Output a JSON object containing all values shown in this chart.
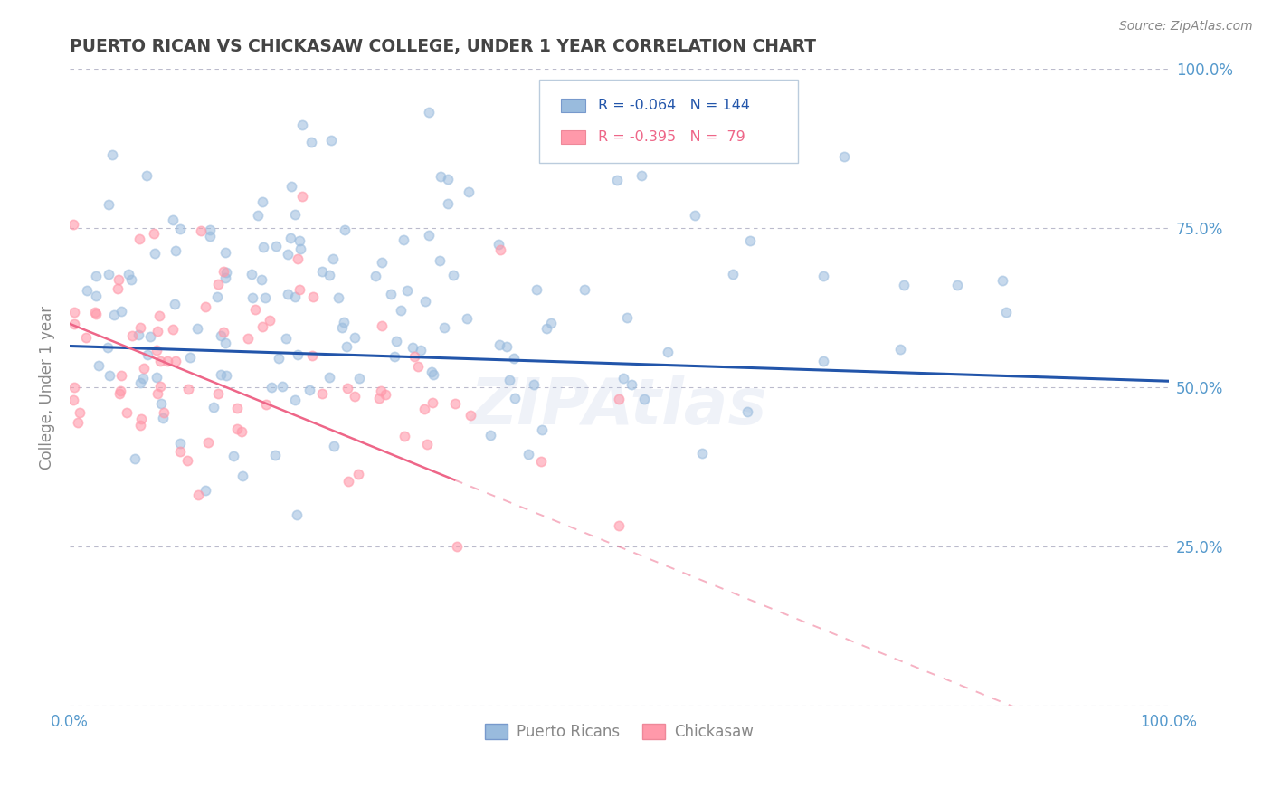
{
  "title": "PUERTO RICAN VS CHICKASAW COLLEGE, UNDER 1 YEAR CORRELATION CHART",
  "source_text": "Source: ZipAtlas.com",
  "ylabel": "College, Under 1 year",
  "watermark": "ZIPAtlas",
  "blue_R": -0.064,
  "blue_N": 144,
  "pink_R": -0.395,
  "pink_N": 79,
  "blue_color": "#99BBDD",
  "pink_color": "#FF99AA",
  "blue_line_color": "#2255AA",
  "pink_line_color": "#EE6688",
  "xmin": 0.0,
  "xmax": 1.0,
  "ymin": 0.0,
  "ymax": 1.0,
  "yticks": [
    0.0,
    0.25,
    0.5,
    0.75,
    1.0
  ],
  "ytick_labels_right": [
    "",
    "25.0%",
    "50.0%",
    "75.0%",
    "100.0%"
  ],
  "xticks": [
    0.0,
    0.25,
    0.5,
    0.75,
    1.0
  ],
  "xtick_labels": [
    "0.0%",
    "",
    "",
    "",
    "100.0%"
  ],
  "grid_color": "#BBBBCC",
  "background_color": "#FFFFFF",
  "title_color": "#444444",
  "axis_label_color": "#888888",
  "tick_label_color": "#5599CC",
  "watermark_color": "#AABBDD",
  "watermark_alpha": 0.18,
  "legend_blue_label": "Puerto Ricans",
  "legend_pink_label": "Chickasaw",
  "blue_scatter_seed": 42,
  "pink_scatter_seed": 7
}
